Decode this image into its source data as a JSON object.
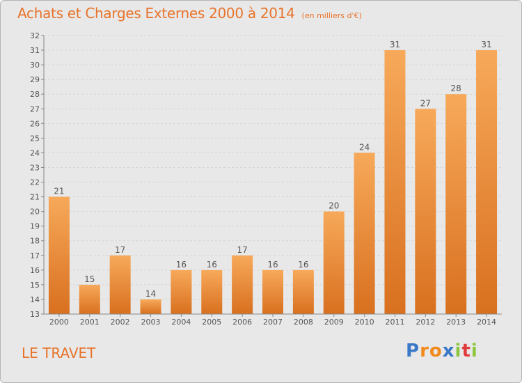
{
  "header": {
    "title": "Achats et Charges Externes 2000 à 2014",
    "unit": "(en milliers d'€)"
  },
  "footer": {
    "place": "LE TRAVET",
    "logo": "Proxiti"
  },
  "colors": {
    "accent": "#e8732a",
    "bar_top": "#f7a95a",
    "bar_bottom": "#d8701f"
  },
  "chart_data": {
    "type": "bar",
    "categories": [
      "2000",
      "2001",
      "2002",
      "2003",
      "2004",
      "2005",
      "2006",
      "2007",
      "2008",
      "2009",
      "2010",
      "2011",
      "2012",
      "2013",
      "2014"
    ],
    "values": [
      21,
      15,
      17,
      14,
      16,
      16,
      17,
      16,
      16,
      20,
      24,
      31,
      27,
      28,
      31
    ],
    "ylim": [
      13,
      32
    ],
    "yticks": [
      13,
      14,
      15,
      16,
      17,
      18,
      19,
      20,
      21,
      22,
      23,
      24,
      25,
      26,
      27,
      28,
      29,
      30,
      31,
      32
    ],
    "grid": true,
    "data_labels": true
  }
}
